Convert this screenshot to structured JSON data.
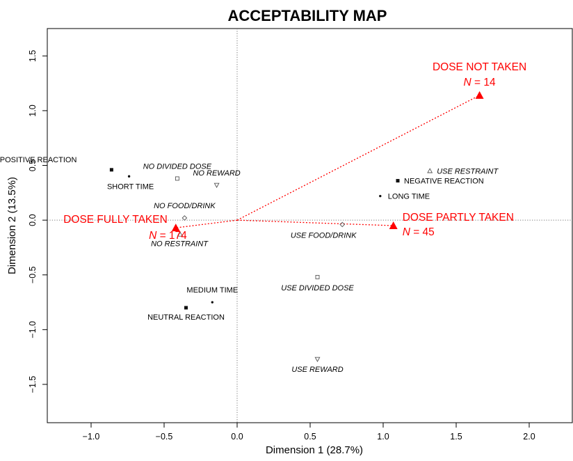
{
  "chart_data": {
    "type": "scatter",
    "title": "ACCEPTABILITY MAP",
    "xlabel": "Dimension 1 (28.7%)",
    "ylabel": "Dimension 2 (13.5%)",
    "xlim": [
      -1.3,
      2.3
    ],
    "ylim": [
      -1.85,
      1.75
    ],
    "xticks": [
      -1.0,
      -0.5,
      0.0,
      0.5,
      1.0,
      1.5,
      2.0
    ],
    "xtick_labels": [
      "−1.0",
      "−0.5",
      "0.0",
      "0.5",
      "1.0",
      "1.5",
      "2.0"
    ],
    "yticks": [
      -1.5,
      -1.0,
      -0.5,
      0.0,
      0.5,
      1.0,
      1.5
    ],
    "ytick_labels": [
      "−1.5",
      "−1.0",
      "−0.5",
      "0.0",
      "0.5",
      "1.0",
      "1.5"
    ],
    "reference_lines": {
      "x": 0,
      "y": 0,
      "style": "dotted"
    },
    "origin": [
      0,
      0
    ],
    "variables": [
      {
        "label": "POSITIVE REACTION",
        "x": -0.86,
        "y": 0.46,
        "marker": "square-filled",
        "italic": false,
        "anchor": "end",
        "dx": -50,
        "dy": -11
      },
      {
        "label": "SHORT TIME",
        "x": -0.74,
        "y": 0.4,
        "marker": "dot",
        "italic": false,
        "anchor": "middle",
        "dx": 2,
        "dy": 18
      },
      {
        "label": "NO DIVIDED DOSE",
        "x": -0.41,
        "y": 0.38,
        "marker": "square-open",
        "italic": true,
        "anchor": "middle",
        "dx": 0,
        "dy": -14
      },
      {
        "label": "NO REWARD",
        "x": -0.14,
        "y": 0.32,
        "marker": "triangle-down-open",
        "italic": true,
        "anchor": "middle",
        "dx": 0,
        "dy": -14
      },
      {
        "label": "NO FOOD/DRINK",
        "x": -0.36,
        "y": 0.02,
        "marker": "diamond-open",
        "italic": true,
        "anchor": "middle",
        "dx": 0,
        "dy": -14
      },
      {
        "label": "NO RESTRAINT",
        "x": -0.39,
        "y": -0.13,
        "marker": "triangle-up-open",
        "italic": true,
        "anchor": "start",
        "dx": -42,
        "dy": 17
      },
      {
        "label": "MEDIUM TIME",
        "x": -0.17,
        "y": -0.75,
        "marker": "dot",
        "italic": false,
        "anchor": "middle",
        "dx": 0,
        "dy": -14
      },
      {
        "label": "NEUTRAL REACTION",
        "x": -0.35,
        "y": -0.8,
        "marker": "square-filled",
        "italic": false,
        "anchor": "middle",
        "dx": 0,
        "dy": 17
      },
      {
        "label": "USE RESTRAINT",
        "x": 1.32,
        "y": 0.45,
        "marker": "triangle-up-open",
        "italic": true,
        "anchor": "start",
        "dx": 10,
        "dy": 4
      },
      {
        "label": "NEGATIVE REACTION",
        "x": 1.1,
        "y": 0.36,
        "marker": "square-filled",
        "italic": false,
        "anchor": "start",
        "dx": 9,
        "dy": 4
      },
      {
        "label": "LONG TIME",
        "x": 0.98,
        "y": 0.22,
        "marker": "dot",
        "italic": false,
        "anchor": "start",
        "dx": 11,
        "dy": 4
      },
      {
        "label": "USE FOOD/DRINK",
        "x": 0.72,
        "y": -0.04,
        "marker": "diamond-open",
        "italic": true,
        "anchor": "middle",
        "dx": -27,
        "dy": 19
      },
      {
        "label": "USE DIVIDED DOSE",
        "x": 0.55,
        "y": -0.52,
        "marker": "square-open",
        "italic": true,
        "anchor": "middle",
        "dx": 0,
        "dy": 19
      },
      {
        "label": "USE REWARD",
        "x": 0.55,
        "y": -1.27,
        "marker": "triangle-down-open",
        "italic": true,
        "anchor": "middle",
        "dx": 0,
        "dy": 18
      }
    ],
    "groups": [
      {
        "label": "DOSE NOT TAKEN",
        "n_prefix": "N",
        "n_value": " = 14",
        "x": 1.66,
        "y": 1.14,
        "color": "#ff0000",
        "label_anchor": "middle",
        "label_dx": 0,
        "label_dy": -36,
        "n_dx": 0,
        "n_dy": -14
      },
      {
        "label": "DOSE FULLY TAKEN",
        "n_prefix": "N",
        "n_value": " = 174",
        "x": -0.42,
        "y": -0.07,
        "color": "#ff0000",
        "label_anchor": "end",
        "label_dx": -12,
        "label_dy": -7,
        "n_dx": 16,
        "n_dy": 16
      },
      {
        "label": "DOSE PARTLY TAKEN",
        "n_prefix": "N",
        "n_value": " = 45",
        "x": 1.07,
        "y": -0.05,
        "color": "#ff0000",
        "label_anchor": "start",
        "label_dx": 13,
        "label_dy": -7,
        "n_dx": 13,
        "n_dy": 14
      }
    ],
    "colors": {
      "accent": "#ff0000",
      "text": "#000000",
      "marker": "#555555"
    }
  }
}
